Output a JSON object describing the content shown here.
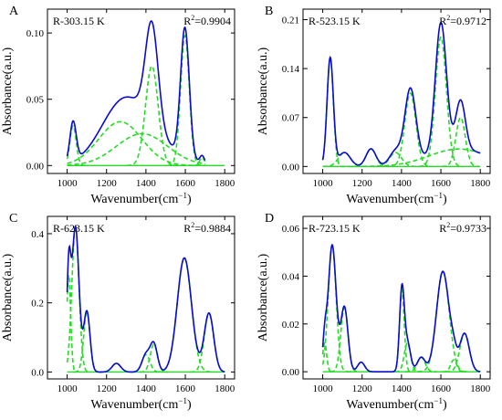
{
  "chart_data": [
    {
      "type": "line",
      "panel_label": "A",
      "annotation": "R-303.15 K",
      "r2_base": "R",
      "r2_exp": "2",
      "r2_value": "=0.9904",
      "xlabel": "Wavenumber(cm",
      "xlabel_exp": "−1",
      "xlabel_end": ")",
      "ylabel": "Absorbance(a.u.)",
      "xlim": [
        900,
        1850
      ],
      "ylim": [
        -0.006,
        0.118
      ],
      "xticks": [
        1000,
        1200,
        1400,
        1600,
        1800
      ],
      "xtick_labels": [
        "1000",
        "1200",
        "1400",
        "1600",
        "1800"
      ],
      "yticks": [
        0.0,
        0.05,
        0.1
      ],
      "ytick_labels": [
        "0.00",
        "0.05",
        "0.10"
      ],
      "fit_range": [
        1000,
        1700
      ],
      "baseline_range": [
        1000,
        1800
      ],
      "components": [
        {
          "center": 1030,
          "amplitude": 0.03,
          "width": 16
        },
        {
          "center": 1270,
          "amplitude": 0.033,
          "width": 110
        },
        {
          "center": 1380,
          "amplitude": 0.024,
          "width": 130
        },
        {
          "center": 1430,
          "amplitude": 0.075,
          "width": 32
        },
        {
          "center": 1598,
          "amplitude": 0.098,
          "width": 22
        },
        {
          "center": 1685,
          "amplitude": 0.006,
          "width": 12
        }
      ]
    },
    {
      "type": "line",
      "panel_label": "B",
      "annotation": "R-523.15 K",
      "r2_base": "R",
      "r2_exp": "2",
      "r2_value": "=0.9712",
      "xlabel": "Wavenumber(cm",
      "xlabel_exp": "−1",
      "xlabel_end": ")",
      "ylabel": "Absorbance(a.u.)",
      "xlim": [
        900,
        1850
      ],
      "ylim": [
        -0.01,
        0.225
      ],
      "xticks": [
        1000,
        1200,
        1400,
        1600,
        1800
      ],
      "xtick_labels": [
        "1000",
        "1200",
        "1400",
        "1600",
        "1800"
      ],
      "yticks": [
        0.0,
        0.07,
        0.14,
        0.21
      ],
      "ytick_labels": [
        "0.00",
        "0.07",
        "0.14",
        "0.21"
      ],
      "fit_range": [
        1000,
        1800
      ],
      "baseline_range": [
        1000,
        1800
      ],
      "components": [
        {
          "center": 1038,
          "amplitude": 0.155,
          "width": 16
        },
        {
          "center": 1110,
          "amplitude": 0.02,
          "width": 30
        },
        {
          "center": 1245,
          "amplitude": 0.025,
          "width": 25
        },
        {
          "center": 1370,
          "amplitude": 0.02,
          "width": 30
        },
        {
          "center": 1445,
          "amplitude": 0.105,
          "width": 28
        },
        {
          "center": 1600,
          "amplitude": 0.185,
          "width": 28
        },
        {
          "center": 1700,
          "amplitude": 0.07,
          "width": 24
        },
        {
          "center": 1690,
          "amplitude": 0.025,
          "width": 150
        }
      ]
    },
    {
      "type": "line",
      "panel_label": "C",
      "annotation": "R-623.15 K",
      "r2_base": "R",
      "r2_exp": "2",
      "r2_value": "=0.9884",
      "xlabel": "Wavenumber(cm",
      "xlabel_exp": "−1",
      "xlabel_end": ")",
      "ylabel": "Absorbance(a.u.)",
      "xlim": [
        900,
        1850
      ],
      "ylim": [
        -0.02,
        0.45
      ],
      "xticks": [
        1000,
        1200,
        1400,
        1600,
        1800
      ],
      "xtick_labels": [
        "1000",
        "1200",
        "1400",
        "1600",
        "1800"
      ],
      "yticks": [
        0.0,
        0.2,
        0.4
      ],
      "ytick_labels": [
        "0.0",
        "0.2",
        "0.4"
      ],
      "fit_range": [
        1000,
        1800
      ],
      "baseline_range": [
        1000,
        1800
      ],
      "components": [
        {
          "center": 1008,
          "amplitude": 0.28,
          "width": 10
        },
        {
          "center": 1042,
          "amplitude": 0.42,
          "width": 18
        },
        {
          "center": 1100,
          "amplitude": 0.175,
          "width": 16
        },
        {
          "center": 1250,
          "amplitude": 0.025,
          "width": 22
        },
        {
          "center": 1400,
          "amplitude": 0.05,
          "width": 20
        },
        {
          "center": 1440,
          "amplitude": 0.08,
          "width": 18
        },
        {
          "center": 1595,
          "amplitude": 0.33,
          "width": 36
        },
        {
          "center": 1720,
          "amplitude": 0.17,
          "width": 24
        }
      ]
    },
    {
      "type": "line",
      "panel_label": "D",
      "annotation": "R-723.15 K",
      "r2_base": "R",
      "r2_exp": "2",
      "r2_value": "=0.9733",
      "xlabel": "Wavenumber(cm",
      "xlabel_exp": "−1",
      "xlabel_end": ")",
      "ylabel": "Absorbance(a.u.)",
      "xlim": [
        900,
        1850
      ],
      "ylim": [
        -0.003,
        0.065
      ],
      "xticks": [
        1000,
        1200,
        1400,
        1600,
        1800
      ],
      "xtick_labels": [
        "1000",
        "1200",
        "1400",
        "1600",
        "1800"
      ],
      "yticks": [
        0.0,
        0.02,
        0.04,
        0.06
      ],
      "ytick_labels": [
        "0.00",
        "0.02",
        "0.04",
        "0.06"
      ],
      "fit_range": [
        1000,
        1800
      ],
      "baseline_range": [
        1000,
        1800
      ],
      "components": [
        {
          "center": 1010,
          "amplitude": 0.012,
          "width": 10
        },
        {
          "center": 1048,
          "amplitude": 0.053,
          "width": 20
        },
        {
          "center": 1110,
          "amplitude": 0.027,
          "width": 18
        },
        {
          "center": 1195,
          "amplitude": 0.004,
          "width": 18
        },
        {
          "center": 1402,
          "amplitude": 0.034,
          "width": 12
        },
        {
          "center": 1430,
          "amplitude": 0.012,
          "width": 16
        },
        {
          "center": 1500,
          "amplitude": 0.006,
          "width": 20
        },
        {
          "center": 1610,
          "amplitude": 0.042,
          "width": 32
        },
        {
          "center": 1665,
          "amplitude": 0.005,
          "width": 15
        },
        {
          "center": 1720,
          "amplitude": 0.016,
          "width": 24
        }
      ]
    }
  ],
  "colors": {
    "envelope": "#0a0ad2",
    "components": "#22dd22",
    "axis": "#000000"
  }
}
